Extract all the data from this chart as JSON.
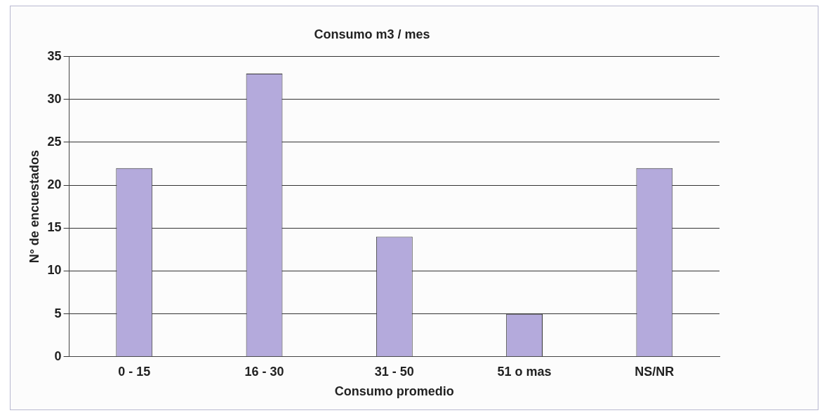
{
  "chart_data": {
    "type": "bar",
    "title": "Consumo m3 / mes",
    "xlabel": "Consumo promedio",
    "ylabel": "N° de encuestados",
    "categories": [
      "0 - 15",
      "16 - 30",
      "31 - 50",
      "51 o mas",
      "NS/NR"
    ],
    "values": [
      22,
      33,
      14,
      5,
      22
    ],
    "color": "#b4aadc",
    "ylim": [
      0,
      35
    ],
    "yticks": [
      0,
      5,
      10,
      15,
      20,
      25,
      30,
      35
    ],
    "grid": "y",
    "legend": false
  }
}
